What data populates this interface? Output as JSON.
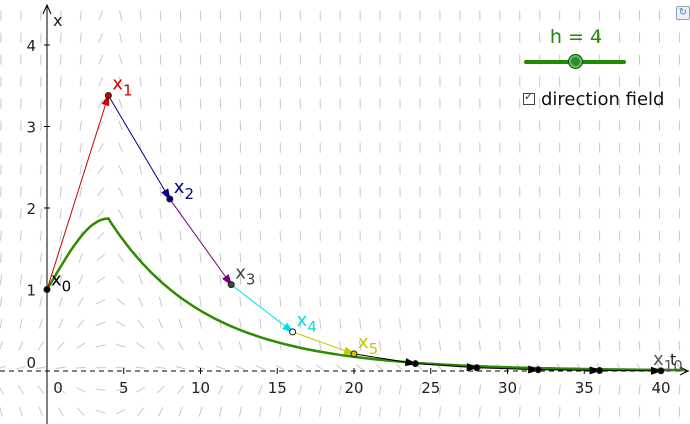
{
  "axes": {
    "x_label": "t",
    "y_label": "x",
    "x_ticks": [
      "0",
      "5",
      "10",
      "15",
      "20",
      "25",
      "30",
      "35",
      "40"
    ],
    "y_ticks": [
      "0",
      "1",
      "2",
      "3",
      "4"
    ]
  },
  "slider": {
    "label": "h = 4",
    "value": 4,
    "min": 0,
    "max": 8
  },
  "checkbox": {
    "label": "direction field",
    "checked": true
  },
  "points": [
    {
      "label": "x",
      "sub": "0",
      "t": 0,
      "x": 1.0,
      "color": "#000000",
      "label_color": "#000000"
    },
    {
      "label": "x",
      "sub": "1",
      "t": 4,
      "x": 3.38,
      "color": "#cc0000",
      "label_color": "#cc0000"
    },
    {
      "label": "x",
      "sub": "2",
      "t": 8,
      "x": 2.11,
      "color": "#00008b",
      "label_color": "#00008b"
    },
    {
      "label": "x",
      "sub": "3",
      "t": 12,
      "x": 1.06,
      "color": "#444444",
      "label_color": "#444444"
    },
    {
      "label": "x",
      "sub": "4",
      "t": 16,
      "x": 0.48,
      "color": "#00e0e0",
      "label_color": "#00e0e0"
    },
    {
      "label": "x",
      "sub": "5",
      "t": 20,
      "x": 0.21,
      "color": "#c8c800",
      "label_color": "#c8c800"
    },
    {
      "label": "",
      "sub": "",
      "t": 24,
      "x": 0.09,
      "color": "#000000",
      "label_color": "#000000"
    },
    {
      "label": "",
      "sub": "",
      "t": 28,
      "x": 0.04,
      "color": "#000000",
      "label_color": "#000000"
    },
    {
      "label": "",
      "sub": "",
      "t": 32,
      "x": 0.015,
      "color": "#000000",
      "label_color": "#000000"
    },
    {
      "label": "",
      "sub": "",
      "t": 36,
      "x": 0.006,
      "color": "#000000",
      "label_color": "#000000"
    },
    {
      "label": "x",
      "sub": "10",
      "t": 40,
      "x": 0.002,
      "color": "#000000",
      "label_color": "#555555"
    }
  ],
  "segment_colors": [
    "#cc0000",
    "#00008b",
    "#7a007a",
    "#00e0e0",
    "#c8c800",
    "#000000",
    "#000000",
    "#000000",
    "#000000",
    "#000000"
  ],
  "colors": {
    "curve": "#2e8b00",
    "field": "#c8c8c8",
    "axis": "#000000",
    "tick": "#222222"
  }
}
